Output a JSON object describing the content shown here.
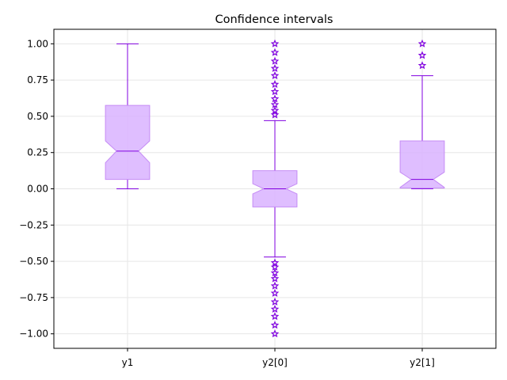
{
  "chart_data": {
    "type": "box",
    "title": "Confidence intervals",
    "xlabel": "",
    "ylabel": "",
    "ylim": [
      -1.1,
      1.1
    ],
    "grid": true,
    "notched": true,
    "categories": [
      "y1",
      "y2[0]",
      "y2[1]"
    ],
    "yticks": [
      "1.00",
      "0.75",
      "0.50",
      "0.25",
      "0.00",
      "−0.25",
      "−0.50",
      "−0.75",
      "−1.00"
    ],
    "ytick_values": [
      1.0,
      0.75,
      0.5,
      0.25,
      0.0,
      -0.25,
      -0.5,
      -0.75,
      -1.0
    ],
    "boxes": [
      {
        "label": "y1",
        "whisker_low": 0.0,
        "q1": 0.065,
        "notch_low": 0.18,
        "median": 0.26,
        "notch_high": 0.33,
        "q3": 0.575,
        "whisker_high": 1.0,
        "outliers": []
      },
      {
        "label": "y2[0]",
        "whisker_low": -0.47,
        "q1": -0.125,
        "notch_low": -0.035,
        "median": 0.0,
        "notch_high": 0.035,
        "q3": 0.125,
        "whisker_high": 0.47,
        "outliers": [
          0.51,
          0.54,
          0.58,
          0.62,
          0.67,
          0.72,
          0.78,
          0.83,
          0.88,
          0.94,
          1.0,
          -0.51,
          -0.54,
          -0.58,
          -0.62,
          -0.67,
          -0.72,
          -0.78,
          -0.83,
          -0.88,
          -0.94,
          -1.0
        ]
      },
      {
        "label": "y2[1]",
        "whisker_low": 0.0,
        "q1": 0.005,
        "notch_low": 0.01,
        "median": 0.065,
        "notch_high": 0.115,
        "q3": 0.33,
        "whisker_high": 0.78,
        "outliers": [
          0.85,
          0.92,
          1.0
        ]
      }
    ],
    "colors": {
      "box_fill": "#d9b3ff",
      "box_edge": "#c58cf5",
      "line": "#8000e0",
      "grid": "#e6e6e6",
      "axes": "#000000"
    },
    "outlier_marker": "star"
  }
}
